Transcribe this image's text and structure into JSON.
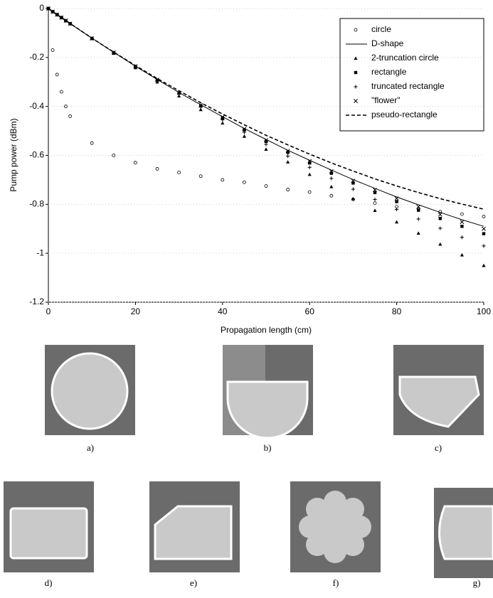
{
  "chart_data": {
    "type": "line",
    "xlabel": "Propagation length (cm)",
    "ylabel": "Pump power (dBm)",
    "x": [
      0,
      1,
      2,
      3,
      4,
      5,
      10,
      15,
      20,
      25,
      30,
      35,
      40,
      45,
      50,
      55,
      60,
      65,
      70,
      75,
      80,
      85,
      90,
      95,
      100
    ],
    "series": [
      {
        "name": "circle",
        "marker": "circle",
        "color": "#000000",
        "values": [
          0,
          -0.17,
          -0.27,
          -0.34,
          -0.4,
          -0.44,
          -0.55,
          -0.6,
          -0.63,
          -0.655,
          -0.67,
          -0.685,
          -0.7,
          -0.71,
          -0.725,
          -0.74,
          -0.75,
          -0.765,
          -0.78,
          -0.795,
          -0.81,
          -0.82,
          -0.83,
          -0.84,
          -0.85
        ]
      },
      {
        "name": "D-shape",
        "marker": "line",
        "color": "#000000",
        "values": [
          0,
          -0.013,
          -0.025,
          -0.037,
          -0.049,
          -0.062,
          -0.121,
          -0.179,
          -0.236,
          -0.29,
          -0.343,
          -0.393,
          -0.442,
          -0.49,
          -0.535,
          -0.579,
          -0.62,
          -0.66,
          -0.699,
          -0.735,
          -0.77,
          -0.802,
          -0.833,
          -0.863,
          -0.89
        ]
      },
      {
        "name": "2-truncation circle",
        "marker": "triangle",
        "color": "#000000",
        "values": [
          0,
          -0.013,
          -0.025,
          -0.037,
          -0.05,
          -0.062,
          -0.123,
          -0.183,
          -0.242,
          -0.3,
          -0.357,
          -0.413,
          -0.468,
          -0.522,
          -0.575,
          -0.627,
          -0.678,
          -0.728,
          -0.777,
          -0.825,
          -0.872,
          -0.918,
          -0.963,
          -1.007,
          -1.05
        ]
      },
      {
        "name": "rectangle",
        "marker": "square",
        "color": "#000000",
        "values": [
          0,
          -0.013,
          -0.025,
          -0.037,
          -0.05,
          -0.062,
          -0.122,
          -0.18,
          -0.237,
          -0.292,
          -0.345,
          -0.397,
          -0.447,
          -0.496,
          -0.543,
          -0.588,
          -0.631,
          -0.673,
          -0.713,
          -0.752,
          -0.789,
          -0.824,
          -0.858,
          -0.89,
          -0.92
        ]
      },
      {
        "name": "truncated rectangle",
        "marker": "plus",
        "color": "#000000",
        "values": [
          0,
          -0.013,
          -0.025,
          -0.037,
          -0.05,
          -0.062,
          -0.122,
          -0.181,
          -0.239,
          -0.295,
          -0.35,
          -0.403,
          -0.455,
          -0.506,
          -0.555,
          -0.603,
          -0.649,
          -0.694,
          -0.738,
          -0.78,
          -0.821,
          -0.86,
          -0.898,
          -0.935,
          -0.97
        ]
      },
      {
        "name": "\"flower\"",
        "marker": "x",
        "color": "#000000",
        "values": [
          0,
          -0.013,
          -0.025,
          -0.037,
          -0.049,
          -0.062,
          -0.122,
          -0.18,
          -0.236,
          -0.291,
          -0.344,
          -0.395,
          -0.444,
          -0.492,
          -0.538,
          -0.582,
          -0.624,
          -0.665,
          -0.704,
          -0.741,
          -0.776,
          -0.81,
          -0.842,
          -0.872,
          -0.9
        ]
      },
      {
        "name": "pseudo-rectangle",
        "marker": "dashed",
        "color": "#000000",
        "values": [
          0,
          -0.013,
          -0.025,
          -0.037,
          -0.049,
          -0.061,
          -0.121,
          -0.178,
          -0.233,
          -0.286,
          -0.336,
          -0.385,
          -0.431,
          -0.475,
          -0.518,
          -0.557,
          -0.595,
          -0.631,
          -0.664,
          -0.696,
          -0.725,
          -0.752,
          -0.777,
          -0.799,
          -0.82
        ]
      }
    ],
    "xlim": [
      0,
      100
    ],
    "xticks": [
      0,
      20,
      40,
      60,
      80,
      100
    ],
    "ylim": [
      -1.2,
      0
    ],
    "yticks": [
      0,
      -0.2,
      -0.4,
      -0.6,
      -0.8,
      -1,
      -1.2
    ],
    "grid": true,
    "legend": "upper right"
  },
  "panels": [
    "a)",
    "b)",
    "c)",
    "d)",
    "e)",
    "f)",
    "g)"
  ]
}
